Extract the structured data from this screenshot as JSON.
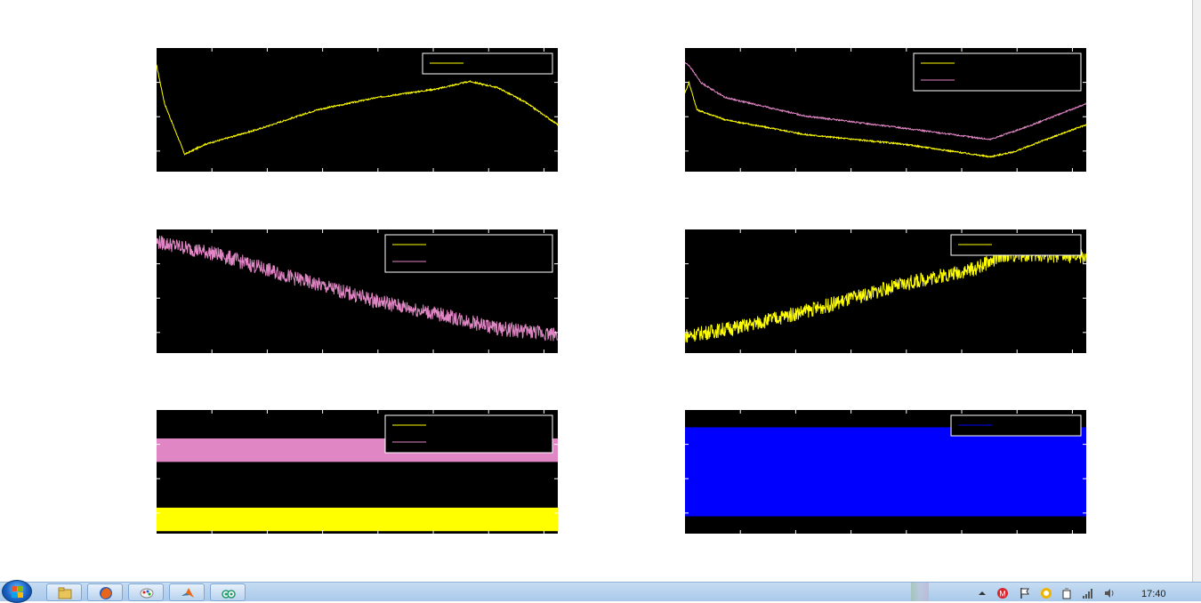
{
  "window": {
    "background": "#ffffff",
    "axes_background": "#000000"
  },
  "colors": {
    "yellow": "#ffff00",
    "pink": "#e086c4",
    "blue": "#0000ff",
    "white": "#ffffff"
  },
  "chart_data": [
    {
      "type": "line",
      "id": "top-left",
      "title": "",
      "xlabel": "",
      "ylabel": "",
      "xlim": [
        0,
        1
      ],
      "ylim": [
        0,
        1
      ],
      "grid": false,
      "legend_location": "top-right",
      "series": [
        {
          "color": "#ffff00",
          "x": [
            0,
            0.02,
            0.07,
            0.12,
            0.25,
            0.4,
            0.55,
            0.7,
            0.78,
            0.85,
            0.92,
            1.0
          ],
          "y": [
            0.86,
            0.55,
            0.14,
            0.22,
            0.34,
            0.5,
            0.6,
            0.67,
            0.73,
            0.68,
            0.56,
            0.38
          ],
          "noise": 0.006
        }
      ]
    },
    {
      "type": "line",
      "id": "top-right",
      "title": "",
      "xlabel": "",
      "ylabel": "",
      "xlim": [
        0,
        1
      ],
      "ylim": [
        0,
        1
      ],
      "grid": false,
      "legend_location": "top-right",
      "series": [
        {
          "color": "#ffff00",
          "x": [
            0,
            0.01,
            0.03,
            0.1,
            0.3,
            0.55,
            0.76,
            0.82,
            0.9,
            1.0
          ],
          "y": [
            0.64,
            0.72,
            0.5,
            0.42,
            0.3,
            0.22,
            0.12,
            0.16,
            0.26,
            0.38
          ],
          "noise": 0.006
        },
        {
          "color": "#e086c4",
          "x": [
            0,
            0.01,
            0.04,
            0.1,
            0.3,
            0.55,
            0.76,
            0.85,
            1.0
          ],
          "y": [
            0.88,
            0.86,
            0.72,
            0.6,
            0.45,
            0.35,
            0.26,
            0.36,
            0.55
          ],
          "noise": 0.006
        }
      ]
    },
    {
      "type": "line",
      "id": "middle-left",
      "title": "",
      "xlabel": "",
      "ylabel": "",
      "xlim": [
        0,
        1
      ],
      "ylim": [
        0,
        1
      ],
      "grid": false,
      "legend_location": "top-right",
      "series": [
        {
          "color": "#e086c4",
          "x": [
            0,
            0.15,
            0.35,
            0.55,
            0.75,
            0.85,
            1.0
          ],
          "y": [
            0.9,
            0.8,
            0.6,
            0.42,
            0.28,
            0.2,
            0.15
          ],
          "noise": 0.06
        }
      ]
    },
    {
      "type": "line",
      "id": "middle-right",
      "title": "",
      "xlabel": "",
      "ylabel": "",
      "xlim": [
        0,
        1
      ],
      "ylim": [
        0,
        1
      ],
      "grid": false,
      "legend_location": "top-right",
      "series": [
        {
          "color": "#ffff00",
          "x": [
            0,
            0.15,
            0.35,
            0.5,
            0.6,
            0.72,
            0.8,
            1.0
          ],
          "y": [
            0.14,
            0.22,
            0.38,
            0.52,
            0.6,
            0.68,
            0.8,
            0.78
          ],
          "noise": 0.06
        }
      ]
    },
    {
      "type": "area",
      "id": "bottom-left",
      "title": "",
      "xlabel": "",
      "ylabel": "",
      "xlim": [
        0,
        1
      ],
      "ylim": [
        0,
        1
      ],
      "grid": false,
      "legend_location": "top-right",
      "bands": [
        {
          "color": "#e086c4",
          "low": 0.58,
          "high": 0.77
        },
        {
          "color": "#ffff00",
          "low": 0.02,
          "high": 0.21
        }
      ]
    },
    {
      "type": "area",
      "id": "bottom-right",
      "title": "",
      "xlabel": "",
      "ylabel": "",
      "xlim": [
        0,
        1
      ],
      "ylim": [
        0,
        1
      ],
      "grid": false,
      "legend_location": "top-right",
      "bands": [
        {
          "color": "#0000ff",
          "low": 0.14,
          "high": 0.86
        }
      ]
    }
  ],
  "legends": {
    "top-left": {
      "entries": [
        {
          "color": "#ffff00",
          "label": ""
        }
      ]
    },
    "top-right": {
      "entries": [
        {
          "color": "#ffff00",
          "label": ""
        },
        {
          "color": "#e086c4",
          "label": ""
        }
      ]
    },
    "middle-left": {
      "entries": [
        {
          "color": "#ffff00",
          "label": ""
        },
        {
          "color": "#e086c4",
          "label": ""
        }
      ]
    },
    "middle-right": {
      "entries": [
        {
          "color": "#ffff00",
          "label": ""
        }
      ]
    },
    "bottom-left": {
      "entries": [
        {
          "color": "#ffff00",
          "label": ""
        },
        {
          "color": "#e086c4",
          "label": ""
        }
      ]
    },
    "bottom-right": {
      "entries": [
        {
          "color": "#0000ff",
          "label": ""
        }
      ]
    }
  },
  "taskbar": {
    "buttons": [
      {
        "name": "explorer-task-button",
        "icon": "folder-icon"
      },
      {
        "name": "firefox-task-button",
        "icon": "firefox-icon"
      },
      {
        "name": "paint-task-button",
        "icon": "paint-icon"
      },
      {
        "name": "matlab-task-button",
        "icon": "matlab-icon"
      },
      {
        "name": "tripadvisor-task-button",
        "icon": "owl-icon"
      }
    ],
    "tray": [
      "show-hidden-icons-icon",
      "antivirus-icon",
      "action-center-flag-icon",
      "update-icon",
      "usb-icon",
      "network-signal-icon",
      "volume-icon"
    ],
    "clock": "17:40"
  }
}
